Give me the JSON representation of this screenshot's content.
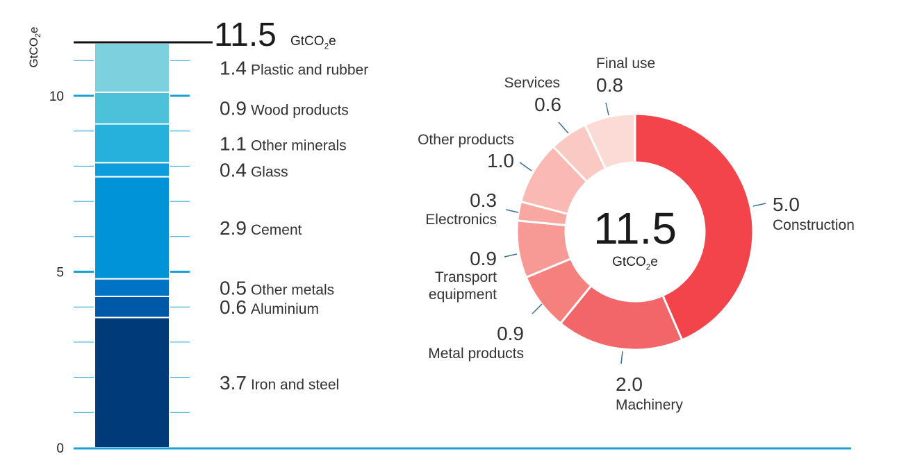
{
  "chart_data": [
    {
      "type": "bar",
      "stacked": true,
      "title": "",
      "ylabel_parts": {
        "main": "GtCO",
        "sub": "2",
        "tail": "e"
      },
      "ylim": [
        0,
        11.5
      ],
      "yticks": [
        "0",
        "5",
        "10"
      ],
      "total": {
        "value": "11.5",
        "unit_main": "GtCO",
        "unit_sub": "2",
        "unit_tail": "e"
      },
      "segments": [
        {
          "label": "Iron and steel",
          "value": 3.7,
          "value_text": "3.7",
          "color": "#003a78"
        },
        {
          "label": "Aluminium",
          "value": 0.6,
          "value_text": "0.6",
          "color": "#0059a8"
        },
        {
          "label": "Other metals",
          "value": 0.5,
          "value_text": "0.5",
          "color": "#0073c4"
        },
        {
          "label": "Cement",
          "value": 2.9,
          "value_text": "2.9",
          "color": "#0093d5"
        },
        {
          "label": "Glass",
          "value": 0.4,
          "value_text": "0.4",
          "color": "#0d9ddc"
        },
        {
          "label": "Other minerals",
          "value": 1.1,
          "value_text": "1.1",
          "color": "#25b1dc"
        },
        {
          "label": "Wood products",
          "value": 0.9,
          "value_text": "0.9",
          "color": "#4dc1d8"
        },
        {
          "label": "Plastic and rubber",
          "value": 1.4,
          "value_text": "1.4",
          "color": "#7dd1df"
        }
      ],
      "grid_color": "#1aa0d8"
    },
    {
      "type": "pie",
      "donut": true,
      "center": {
        "value": "11.5",
        "unit_main": "GtCO",
        "unit_sub": "2",
        "unit_tail": "e"
      },
      "slices": [
        {
          "label": "Construction",
          "value": 5.0,
          "value_text": "5.0",
          "color": "#f3434b"
        },
        {
          "label": "Machinery",
          "value": 2.0,
          "value_text": "2.0",
          "color": "#f2666a"
        },
        {
          "label": "Metal products",
          "value": 0.9,
          "value_text": "0.9",
          "color": "#f5817f"
        },
        {
          "label": "Transport equipment",
          "label_lines": [
            "Transport",
            "equipment"
          ],
          "value": 0.9,
          "value_text": "0.9",
          "color": "#f79994"
        },
        {
          "label": "Electronics",
          "value": 0.3,
          "value_text": "0.3",
          "color": "#f9a7a1"
        },
        {
          "label": "Other products",
          "value": 1.0,
          "value_text": "1.0",
          "color": "#fab9b3"
        },
        {
          "label": "Services",
          "value": 0.6,
          "value_text": "0.6",
          "color": "#fbc9c3"
        },
        {
          "label": "Final use",
          "value": 0.8,
          "value_text": "0.8",
          "color": "#fcdbd6"
        }
      ],
      "leader_color": "#3a6f9a"
    }
  ]
}
